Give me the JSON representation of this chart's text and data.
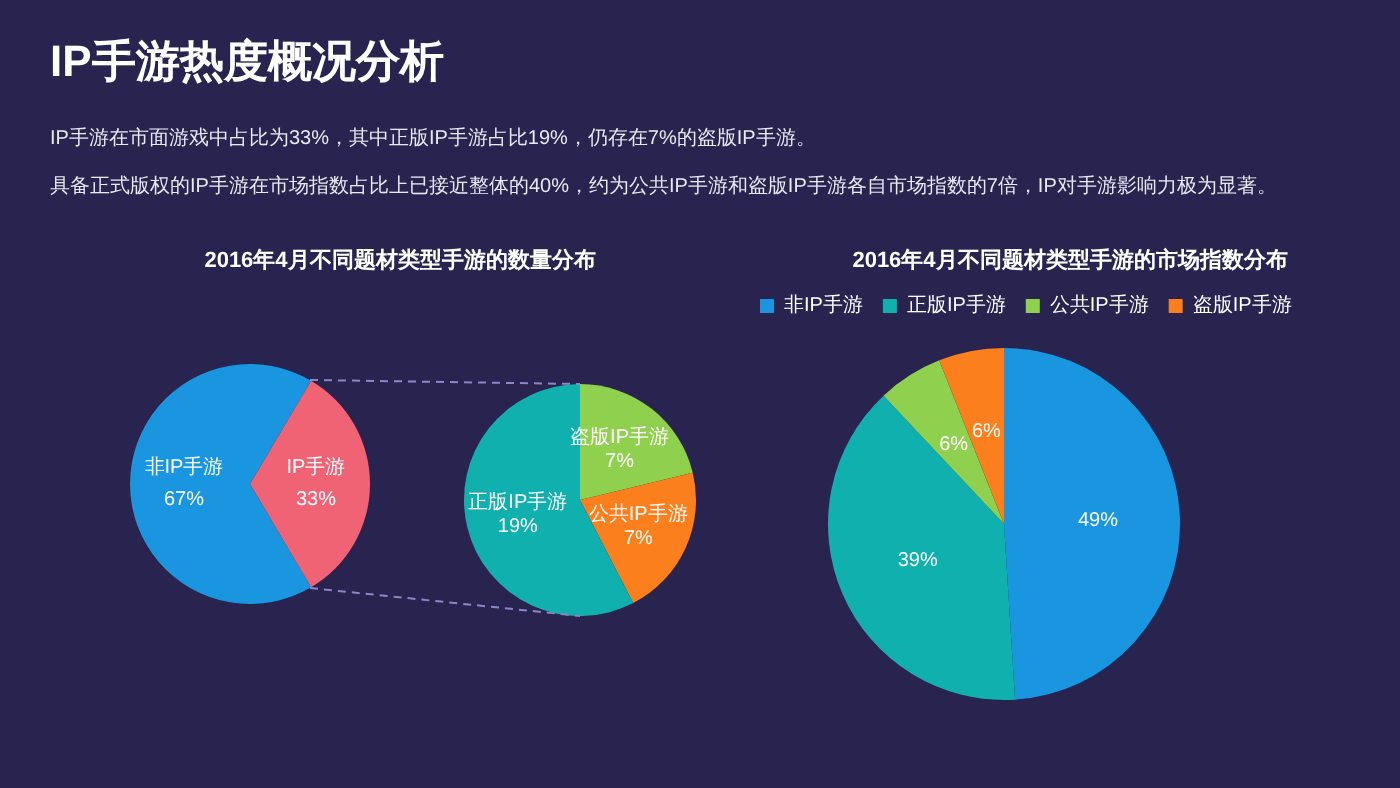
{
  "chart_data": [
    {
      "type": "other",
      "title": "IP手游热度概况分析",
      "annotations": [
        "IP手游在市面游戏中占比为33%，其中正版IP手游占比19%，仍存在7%的盗版IP手游。",
        "具备正式版权的IP手游在市场指数占比上已接近整体的40%，约为公共IP手游和盗版IP手游各自市场指数的7倍，IP对手游影响力极为显著。"
      ]
    },
    {
      "type": "pie",
      "title": "2016年4月不同题材类型手游的数量分布",
      "categories": [
        "非IP手游",
        "IP手游"
      ],
      "values": [
        67,
        33
      ],
      "colors": [
        "#1a96e0",
        "#ef6374"
      ],
      "value_labels": [
        "67%",
        "33%"
      ],
      "legend": false
    },
    {
      "type": "pie",
      "categories": [
        "盗版IP手游",
        "公共IP手游",
        "正版IP手游"
      ],
      "values": [
        7,
        7,
        19
      ],
      "colors": [
        "#8fd14f",
        "#fb7f1c",
        "#0fb0ad"
      ],
      "value_labels": [
        "7%",
        "7%",
        "19%"
      ],
      "legend": false
    },
    {
      "type": "pie",
      "title": "2016年4月不同题材类型手游的市场指数分布",
      "categories": [
        "非IP手游",
        "正版IP手游",
        "公共IP手游",
        "盗版IP手游"
      ],
      "values": [
        49,
        39,
        6,
        6
      ],
      "colors": [
        "#1a96e0",
        "#0fb0ad",
        "#8fd14f",
        "#fb7f1c"
      ],
      "value_labels": [
        "49%",
        "39%",
        "6%",
        "6%"
      ],
      "legend": "top"
    }
  ]
}
